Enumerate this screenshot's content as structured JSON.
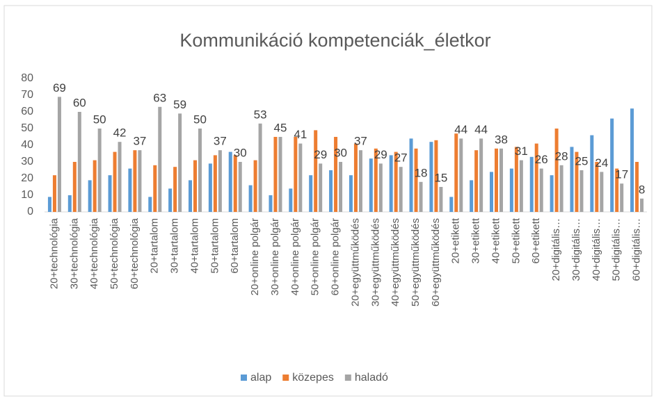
{
  "chart_data": {
    "type": "bar",
    "title": "Kommunikáció kompetenciák_életkor",
    "categories": [
      "20+technológia",
      "30+technológia",
      "40+technológia",
      "50+technológia",
      "60+technológia",
      "20+tartalom",
      "30+tartalom",
      "40+tartalom",
      "50+tartalom",
      "60+tartalom",
      "20+online polgár",
      "30+online polgár",
      "40+online polgár",
      "50+online polgár",
      "60+online polgár",
      "20+együttműködés",
      "30+együttműködés",
      "40+együttműködés",
      "50+együttműködés",
      "60+együttműködés",
      "20+etikett",
      "30+etikett",
      "40+etikett",
      "50+etikett",
      "60+etikett",
      "20+digitális…",
      "30+digitális…",
      "40+digitális…",
      "50+digitális…",
      "60+digitális…"
    ],
    "series": [
      {
        "name": "alap",
        "color": "#5b9bd5",
        "values": [
          9,
          10,
          19,
          22,
          26,
          9,
          14,
          19,
          29,
          36,
          16,
          10,
          14,
          22,
          25,
          22,
          32,
          34,
          44,
          42,
          9,
          19,
          24,
          26,
          33,
          22,
          39,
          46,
          56,
          62
        ]
      },
      {
        "name": "közepes",
        "color": "#ed7d31",
        "values": [
          22,
          30,
          31,
          36,
          37,
          28,
          27,
          31,
          34,
          34,
          31,
          45,
          45,
          49,
          45,
          41,
          38,
          36,
          38,
          43,
          47,
          37,
          38,
          39,
          41,
          50,
          36,
          30,
          26,
          30
        ]
      },
      {
        "name": "haladó",
        "color": "#a5a5a5",
        "labels": true,
        "values": [
          69,
          60,
          50,
          42,
          37,
          63,
          59,
          50,
          37,
          30,
          53,
          45,
          41,
          29,
          30,
          37,
          29,
          27,
          18,
          15,
          44,
          44,
          38,
          31,
          26,
          28,
          25,
          24,
          17,
          8
        ]
      }
    ],
    "ylim": [
      0,
      80
    ],
    "yticks": [
      0,
      10,
      20,
      30,
      40,
      50,
      60,
      70,
      80
    ],
    "grid": false,
    "legend": "bottom"
  }
}
